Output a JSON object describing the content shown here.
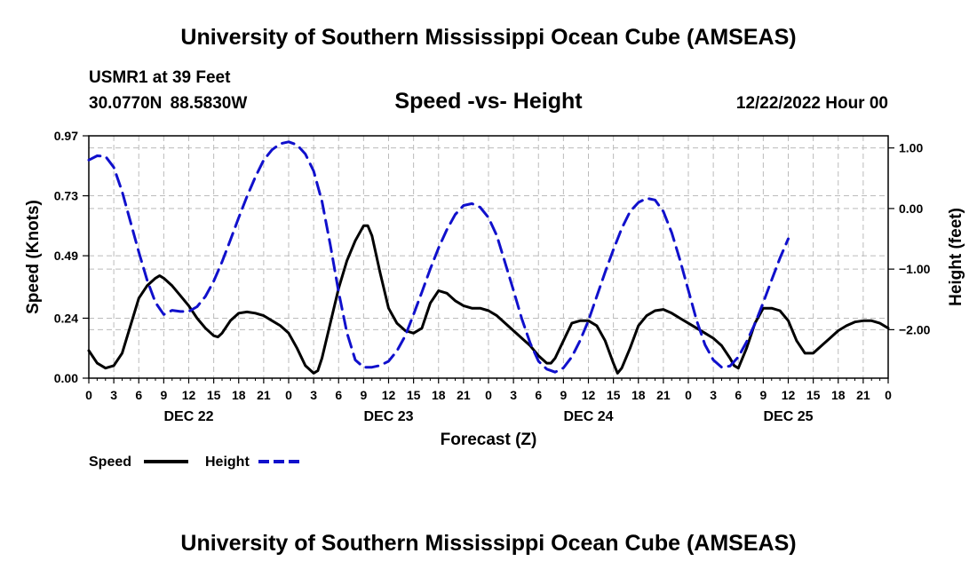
{
  "header": {
    "title_top": "University of Southern Mississippi Ocean Cube (AMSEAS)",
    "station": "USMR1 at 39 Feet",
    "coords": "30.0770N  88.5830W",
    "subtitle": "Speed -vs- Height",
    "datetime": "12/22/2022 Hour 00",
    "title_bottom": "University of Southern Mississippi Ocean Cube (AMSEAS)"
  },
  "colors": {
    "speed": "#000000",
    "height": "#1010cc",
    "grid": "#bbbbbb"
  },
  "chart_data": {
    "type": "line",
    "xlabel": "Forecast (Z)",
    "ylabel_left": "Speed (Knots)",
    "ylabel_right": "Height (feet)",
    "x_range_hours": [
      0,
      96
    ],
    "x_tick_labels": [
      "0",
      "3",
      "6",
      "9",
      "12",
      "15",
      "18",
      "21",
      "0",
      "3",
      "6",
      "9",
      "12",
      "15",
      "18",
      "21",
      "0",
      "3",
      "6",
      "9",
      "12",
      "15",
      "18",
      "21",
      "0",
      "3",
      "6",
      "9",
      "12",
      "15",
      "18",
      "21",
      "0"
    ],
    "day_labels": [
      {
        "label": "DEC 22",
        "hour": 12
      },
      {
        "label": "DEC 23",
        "hour": 36
      },
      {
        "label": "DEC 24",
        "hour": 60
      },
      {
        "label": "DEC 25",
        "hour": 84
      }
    ],
    "y_left": {
      "ticks": [
        0.0,
        0.24,
        0.49,
        0.73,
        0.97
      ],
      "tick_labels": [
        "0.00",
        "0.24",
        "0.49",
        "0.73",
        "0.97"
      ],
      "range": [
        0,
        0.97
      ]
    },
    "y_right": {
      "ticks": [
        1.0,
        0.0,
        -1.0,
        -2.0
      ],
      "tick_labels": [
        "1.00",
        "0.00",
        "−1.00",
        "−2.00"
      ],
      "range": [
        -2.8,
        1.2
      ]
    },
    "series": [
      {
        "name": "Speed",
        "axis": "left",
        "style": "solid",
        "points": [
          [
            0,
            0.11
          ],
          [
            1,
            0.06
          ],
          [
            2,
            0.04
          ],
          [
            3,
            0.05
          ],
          [
            4,
            0.1
          ],
          [
            5,
            0.21
          ],
          [
            6,
            0.32
          ],
          [
            7,
            0.37
          ],
          [
            8,
            0.4
          ],
          [
            8.5,
            0.41
          ],
          [
            9,
            0.4
          ],
          [
            10,
            0.37
          ],
          [
            11,
            0.33
          ],
          [
            12,
            0.29
          ],
          [
            13,
            0.24
          ],
          [
            14,
            0.2
          ],
          [
            15,
            0.17
          ],
          [
            15.5,
            0.165
          ],
          [
            16,
            0.18
          ],
          [
            17,
            0.23
          ],
          [
            18,
            0.26
          ],
          [
            19,
            0.265
          ],
          [
            20,
            0.26
          ],
          [
            21,
            0.25
          ],
          [
            22,
            0.23
          ],
          [
            23,
            0.21
          ],
          [
            24,
            0.18
          ],
          [
            25,
            0.12
          ],
          [
            26,
            0.05
          ],
          [
            27,
            0.02
          ],
          [
            27.5,
            0.03
          ],
          [
            28,
            0.08
          ],
          [
            29,
            0.22
          ],
          [
            30,
            0.36
          ],
          [
            31,
            0.47
          ],
          [
            32,
            0.55
          ],
          [
            33,
            0.61
          ],
          [
            33.5,
            0.61
          ],
          [
            34,
            0.57
          ],
          [
            35,
            0.42
          ],
          [
            36,
            0.28
          ],
          [
            37,
            0.22
          ],
          [
            38,
            0.19
          ],
          [
            39,
            0.18
          ],
          [
            40,
            0.2
          ],
          [
            41,
            0.3
          ],
          [
            42,
            0.35
          ],
          [
            43,
            0.34
          ],
          [
            44,
            0.31
          ],
          [
            45,
            0.29
          ],
          [
            46,
            0.28
          ],
          [
            47,
            0.28
          ],
          [
            48,
            0.27
          ],
          [
            49,
            0.25
          ],
          [
            50,
            0.22
          ],
          [
            51,
            0.19
          ],
          [
            52,
            0.16
          ],
          [
            53,
            0.13
          ],
          [
            54,
            0.09
          ],
          [
            55,
            0.06
          ],
          [
            55.5,
            0.06
          ],
          [
            56,
            0.08
          ],
          [
            57,
            0.15
          ],
          [
            58,
            0.22
          ],
          [
            59,
            0.23
          ],
          [
            60,
            0.23
          ],
          [
            61,
            0.21
          ],
          [
            62,
            0.15
          ],
          [
            63,
            0.06
          ],
          [
            63.5,
            0.02
          ],
          [
            64,
            0.04
          ],
          [
            65,
            0.12
          ],
          [
            66,
            0.21
          ],
          [
            67,
            0.25
          ],
          [
            68,
            0.27
          ],
          [
            69,
            0.275
          ],
          [
            70,
            0.26
          ],
          [
            71,
            0.24
          ],
          [
            72,
            0.22
          ],
          [
            73,
            0.2
          ],
          [
            74,
            0.18
          ],
          [
            75,
            0.16
          ],
          [
            76,
            0.13
          ],
          [
            77,
            0.08
          ],
          [
            77.5,
            0.05
          ],
          [
            78,
            0.04
          ],
          [
            79,
            0.12
          ],
          [
            80,
            0.22
          ],
          [
            81,
            0.28
          ],
          [
            82,
            0.28
          ],
          [
            83,
            0.27
          ],
          [
            84,
            0.23
          ],
          [
            85,
            0.15
          ],
          [
            86,
            0.1
          ],
          [
            87,
            0.1
          ],
          [
            88,
            0.13
          ],
          [
            89,
            0.16
          ],
          [
            90,
            0.19
          ],
          [
            91,
            0.21
          ],
          [
            92,
            0.225
          ],
          [
            93,
            0.23
          ],
          [
            94,
            0.23
          ],
          [
            95,
            0.22
          ],
          [
            96,
            0.2
          ]
        ]
      },
      {
        "name": "Height",
        "axis": "right",
        "style": "dashed",
        "points": [
          [
            0,
            0.8
          ],
          [
            1,
            0.87
          ],
          [
            2,
            0.86
          ],
          [
            3,
            0.68
          ],
          [
            4,
            0.28
          ],
          [
            5,
            -0.22
          ],
          [
            6,
            -0.72
          ],
          [
            7,
            -1.18
          ],
          [
            8,
            -1.55
          ],
          [
            9,
            -1.75
          ],
          [
            10,
            -1.68
          ],
          [
            11,
            -1.7
          ],
          [
            12,
            -1.7
          ],
          [
            13,
            -1.62
          ],
          [
            14,
            -1.45
          ],
          [
            15,
            -1.2
          ],
          [
            16,
            -0.88
          ],
          [
            17,
            -0.52
          ],
          [
            18,
            -0.15
          ],
          [
            19,
            0.2
          ],
          [
            20,
            0.52
          ],
          [
            21,
            0.8
          ],
          [
            22,
            0.97
          ],
          [
            23,
            1.07
          ],
          [
            24,
            1.1
          ],
          [
            25,
            1.05
          ],
          [
            26,
            0.9
          ],
          [
            27,
            0.62
          ],
          [
            28,
            0.12
          ],
          [
            29,
            -0.6
          ],
          [
            30,
            -1.38
          ],
          [
            31,
            -2.05
          ],
          [
            32,
            -2.5
          ],
          [
            33,
            -2.62
          ],
          [
            34,
            -2.62
          ],
          [
            35,
            -2.59
          ],
          [
            36,
            -2.52
          ],
          [
            37,
            -2.35
          ],
          [
            38,
            -2.1
          ],
          [
            39,
            -1.75
          ],
          [
            40,
            -1.38
          ],
          [
            41,
            -1.0
          ],
          [
            42,
            -0.65
          ],
          [
            43,
            -0.35
          ],
          [
            44,
            -0.1
          ],
          [
            45,
            0.05
          ],
          [
            46,
            0.08
          ],
          [
            47,
            0.02
          ],
          [
            48,
            -0.15
          ],
          [
            49,
            -0.45
          ],
          [
            50,
            -0.9
          ],
          [
            51,
            -1.35
          ],
          [
            52,
            -1.82
          ],
          [
            53,
            -2.22
          ],
          [
            54,
            -2.52
          ],
          [
            55,
            -2.65
          ],
          [
            56,
            -2.7
          ],
          [
            57,
            -2.63
          ],
          [
            58,
            -2.45
          ],
          [
            59,
            -2.18
          ],
          [
            60,
            -1.85
          ],
          [
            61,
            -1.45
          ],
          [
            62,
            -1.05
          ],
          [
            63,
            -0.68
          ],
          [
            64,
            -0.33
          ],
          [
            65,
            -0.05
          ],
          [
            66,
            0.1
          ],
          [
            67,
            0.17
          ],
          [
            68,
            0.14
          ],
          [
            69,
            -0.05
          ],
          [
            70,
            -0.4
          ],
          [
            71,
            -0.85
          ],
          [
            72,
            -1.35
          ],
          [
            73,
            -1.85
          ],
          [
            74,
            -2.25
          ],
          [
            75,
            -2.5
          ],
          [
            76,
            -2.62
          ],
          [
            77,
            -2.6
          ],
          [
            78,
            -2.45
          ],
          [
            79,
            -2.2
          ],
          [
            80,
            -1.9
          ],
          [
            81,
            -1.55
          ],
          [
            82,
            -1.18
          ],
          [
            83,
            -0.82
          ],
          [
            84,
            -0.5
          ]
        ]
      }
    ],
    "legend": [
      {
        "label": "Speed",
        "series": "Speed"
      },
      {
        "label": "Height",
        "series": "Height"
      }
    ]
  }
}
